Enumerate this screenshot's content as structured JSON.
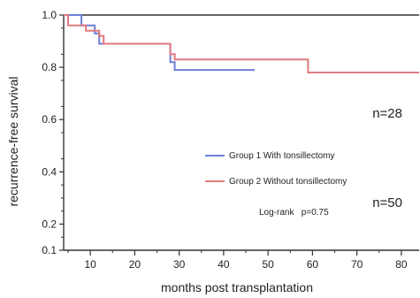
{
  "chart_data": {
    "type": "line",
    "step": true,
    "xlabel": "months post transplantation",
    "ylabel": "recurrence-free survival",
    "xlim": [
      4,
      84
    ],
    "ylim": [
      0.1,
      1.0
    ],
    "x_ticks": [
      10,
      20,
      30,
      40,
      50,
      60,
      70,
      80
    ],
    "y_ticks": [
      0.1,
      0.2,
      0.4,
      0.6,
      0.8,
      1.0
    ],
    "x_tick_labels": [
      "10",
      "20",
      "30",
      "40",
      "50",
      "60",
      "70",
      "80"
    ],
    "y_tick_labels": [
      "0.1",
      "0.2",
      "0.4",
      "0.6",
      "0.8",
      "1.0"
    ],
    "grid": false,
    "legend_position": "right",
    "series": [
      {
        "name": "Group 1 With tonsillectomy",
        "color": "#6f7fd6",
        "n_label": "n=28",
        "points": [
          [
            4,
            1.0
          ],
          [
            8,
            1.0
          ],
          [
            8,
            0.96
          ],
          [
            11,
            0.96
          ],
          [
            11,
            0.93
          ],
          [
            12,
            0.93
          ],
          [
            12,
            0.89
          ],
          [
            16,
            0.89
          ],
          [
            28,
            0.89
          ],
          [
            28,
            0.82
          ],
          [
            29,
            0.82
          ],
          [
            29,
            0.79
          ],
          [
            47,
            0.79
          ]
        ]
      },
      {
        "name": "Group 2 Without tonsillectomy",
        "color": "#e07a80",
        "n_label": "n=50",
        "points": [
          [
            4,
            1.0
          ],
          [
            5,
            1.0
          ],
          [
            5,
            0.96
          ],
          [
            9,
            0.96
          ],
          [
            9,
            0.94
          ],
          [
            12,
            0.94
          ],
          [
            12,
            0.92
          ],
          [
            13,
            0.92
          ],
          [
            13,
            0.89
          ],
          [
            28,
            0.89
          ],
          [
            28,
            0.85
          ],
          [
            29,
            0.85
          ],
          [
            29,
            0.83
          ],
          [
            59,
            0.83
          ],
          [
            59,
            0.78
          ],
          [
            84,
            0.78
          ]
        ]
      }
    ],
    "annotations": [
      {
        "text": "Log-rank   p=0.75"
      }
    ]
  }
}
